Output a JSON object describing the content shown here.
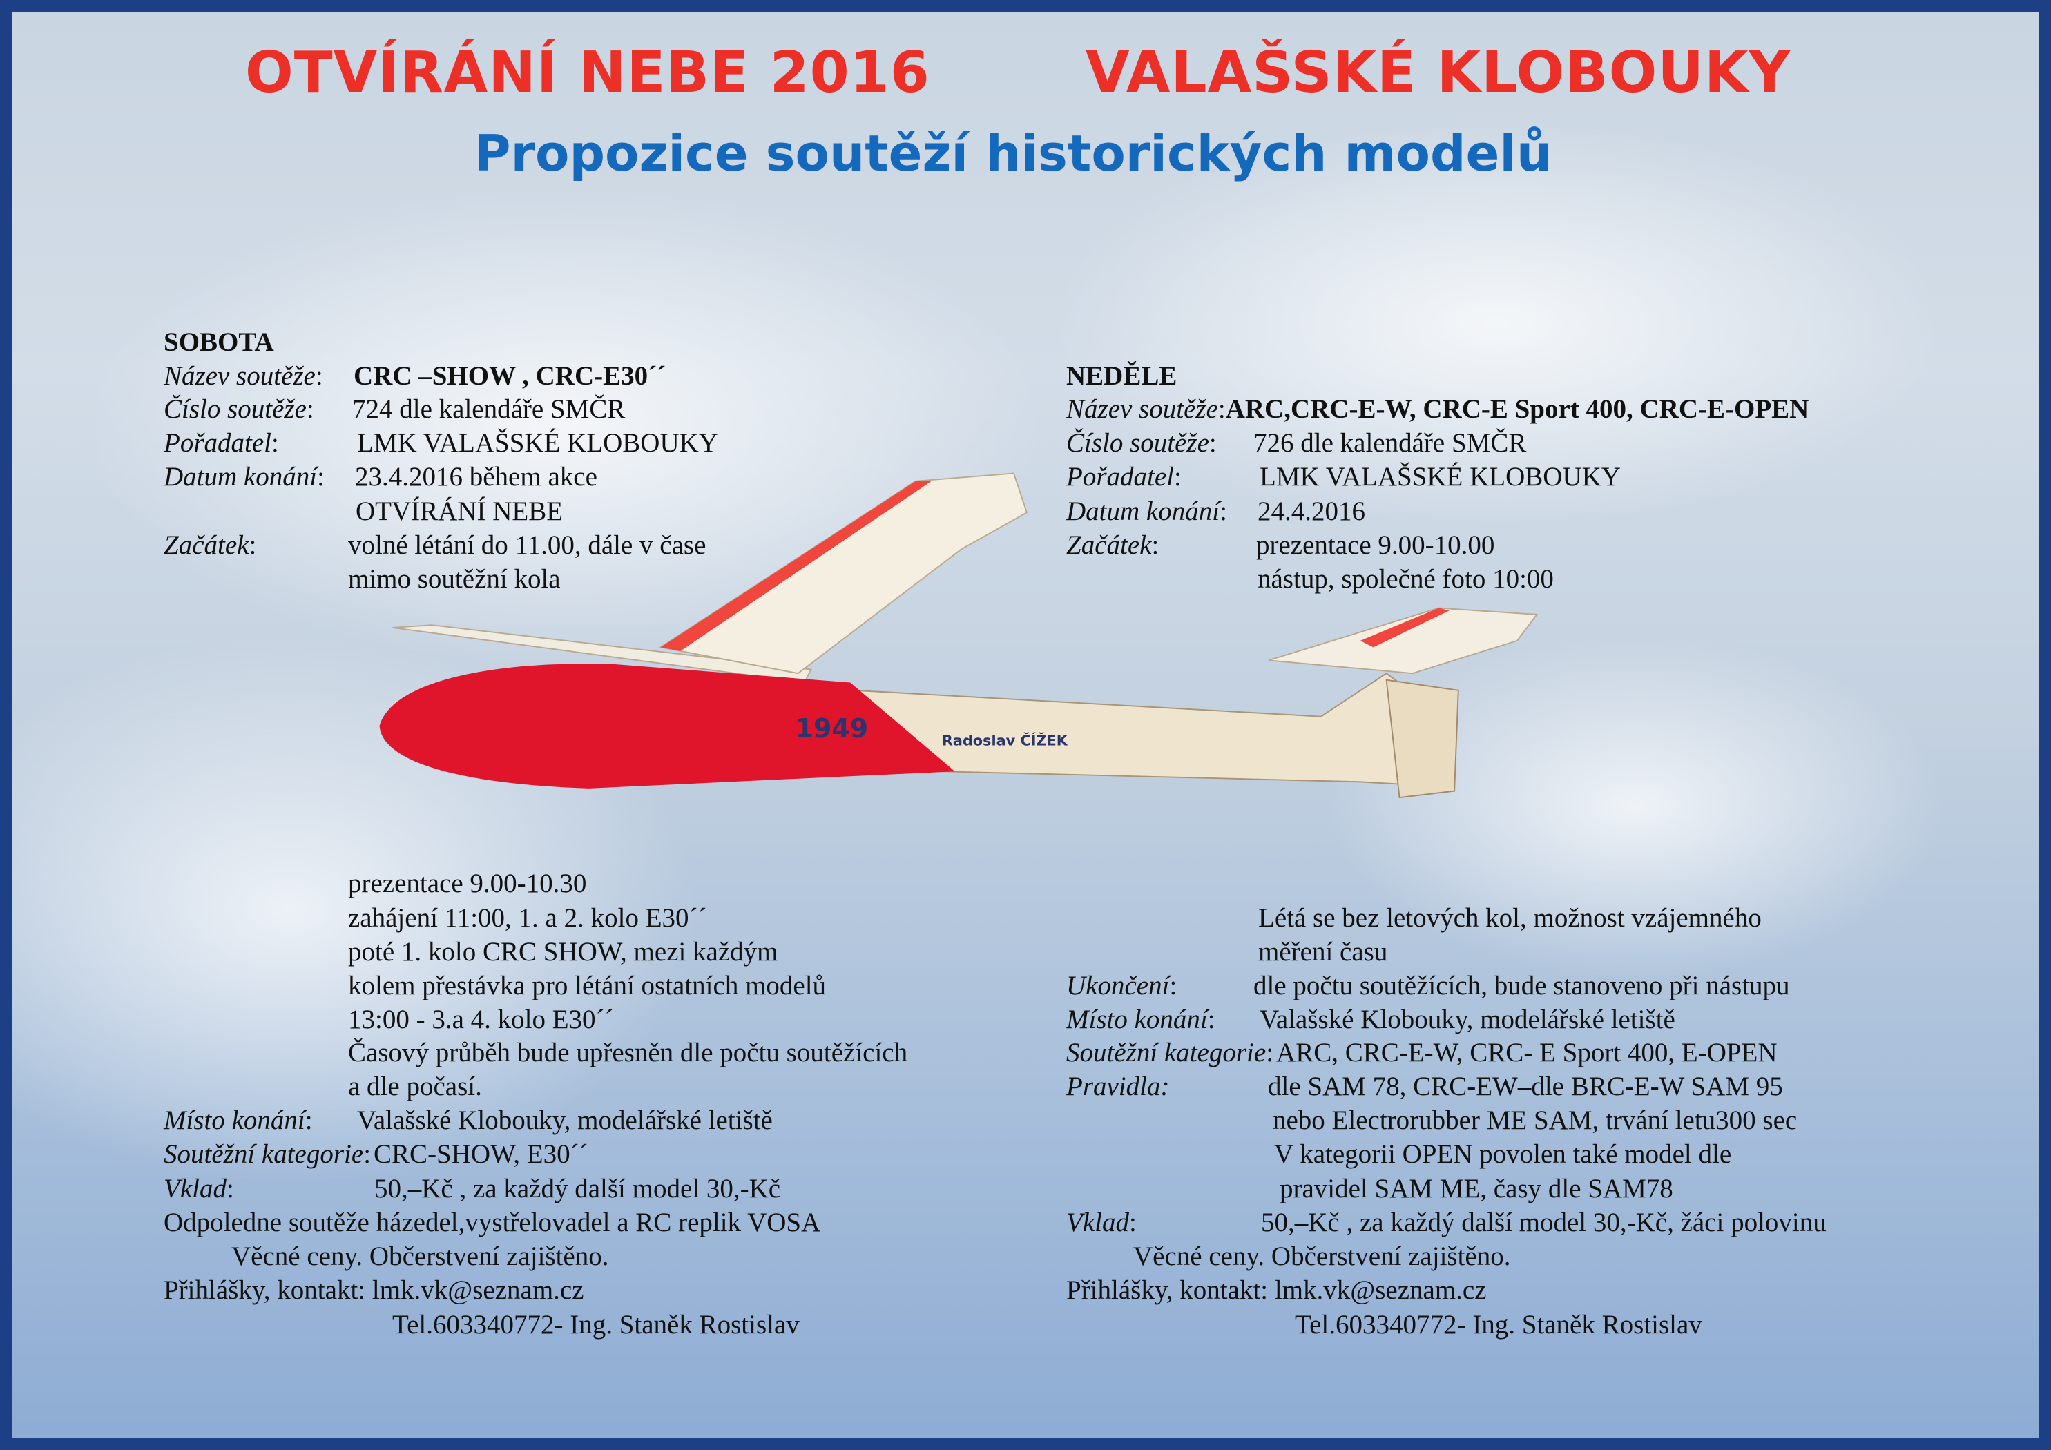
{
  "header": {
    "title_left": "OTVÍRÁNÍ NEBE 2016",
    "title_right": "VALAŠSKÉ KLOBOUKY",
    "subtitle": "Propozice soutěží historických modelů"
  },
  "colors": {
    "title_red": "#ec2f27",
    "subtitle_blue": "#1569bd",
    "frame": "#1c3f86",
    "fuselage_red": "#e0152b"
  },
  "plane_markings": {
    "number": "1949",
    "name": "Radoslav ČÍŽEK"
  },
  "saturday": {
    "heading": "SOBOTA",
    "lines": [
      {
        "label": "Název soutěže",
        "sep": ":",
        "value": "CRC –SHOW , CRC-E30´´",
        "bold": true
      },
      {
        "label": "Číslo soutěže",
        "sep": ":",
        "value": "724 dle kalendáře SMČR"
      },
      {
        "label": "Pořadatel",
        "sep": ":",
        "value": "LMK VALAŠSKÉ KLOBOUKY"
      },
      {
        "label": "Datum konání",
        "sep": ":",
        "value": "23.4.2016  během akce"
      },
      {
        "label": "",
        "sep": "",
        "value": "OTVÍRÁNÍ NEBE"
      },
      {
        "label": "Začátek",
        "sep": ":",
        "value": "volné létání do 11.00, dále v čase"
      },
      {
        "label": "",
        "sep": "",
        "value": "mimo soutěžní kola"
      },
      {
        "label": "",
        "sep": "",
        "value": "prezentace 9.00-10.30"
      },
      {
        "label": "",
        "sep": "",
        "value": "zahájení   11:00, 1.  a 2. kolo E30´´"
      },
      {
        "label": "",
        "sep": "",
        "value": "poté 1. kolo CRC SHOW, mezi každým"
      },
      {
        "label": "",
        "sep": "",
        "value": "kolem přestávka pro létání ostatních modelů"
      },
      {
        "label": "",
        "sep": "",
        "value": "13:00 - 3.a 4. kolo  E30´´"
      },
      {
        "label": "",
        "sep": "",
        "value": "Časový průběh bude upřesněn dle počtu soutěžících"
      },
      {
        "label": "",
        "sep": "",
        "value": "a dle počasí."
      },
      {
        "label": "Místo konání",
        "sep": ":",
        "value": "Valašské Klobouky, modelářské letiště"
      },
      {
        "label": "Soutěžní kategorie",
        "sep": ":",
        "value": "CRC-SHOW,  E30´´"
      },
      {
        "label": "Vklad",
        "sep": ":",
        "value": "50,–Kč , za každý další model 30,-Kč"
      },
      {
        "label": "",
        "sep": "",
        "value": "Odpoledne soutěže házedel,vystřelovadel a RC replik VOSA"
      },
      {
        "label": "",
        "sep": "",
        "value": "Věcné ceny. Občerstvení zajištěno."
      },
      {
        "label": "",
        "sep": "",
        "value": "Přihlášky, kontakt:  lmk.vk@seznam.cz"
      },
      {
        "label": "",
        "sep": "",
        "value": "Tel.603340772- Ing. Staněk Rostislav"
      }
    ]
  },
  "sunday": {
    "heading": "NEDĚLE",
    "lines": [
      {
        "label": "Název soutěže",
        "sep": ":",
        "value": "ARC,CRC-E-W, CRC-E Sport 400, CRC-E-OPEN",
        "bold": true
      },
      {
        "label": "Číslo soutěže",
        "sep": ":",
        "value": "726 dle kalendáře SMČR"
      },
      {
        "label": "Pořadatel",
        "sep": ":",
        "value": "LMK VALAŠSKÉ KLOBOUKY"
      },
      {
        "label": "Datum konání",
        "sep": ":",
        "value": "24.4.2016"
      },
      {
        "label": "Začátek",
        "sep": ":",
        "value": "prezentace 9.00-10.00"
      },
      {
        "label": "",
        "sep": "",
        "value": "nástup, společné foto 10:00"
      },
      {
        "label": "",
        "sep": "",
        "value": "Létá se bez letových kol, možnost vzájemného"
      },
      {
        "label": "",
        "sep": "",
        "value": "měření času"
      },
      {
        "label": "Ukončení",
        "sep": ":",
        "value": "dle počtu soutěžících, bude stanoveno při nástupu"
      },
      {
        "label": "Místo konání",
        "sep": ":",
        "value": "Valašské Klobouky, modelářské letiště"
      },
      {
        "label": "Soutěžní kategorie",
        "sep": ":",
        "value": "ARC, CRC-E-W, CRC- E Sport 400, E-OPEN"
      },
      {
        "label": "Pravidla:",
        "sep": "",
        "value": "dle SAM 78, CRC-EW–dle BRC-E-W SAM 95"
      },
      {
        "label": "",
        "sep": "",
        "value": "nebo  Electrorubber ME SAM, trvání letu300 sec"
      },
      {
        "label": "",
        "sep": "",
        "value": "V kategorii OPEN povolen také model dle"
      },
      {
        "label": "",
        "sep": "",
        "value": "pravidel  SAM ME, časy dle SAM78"
      },
      {
        "label": "Vklad",
        "sep": ":",
        "value": "50,–Kč , za každý další model 30,-Kč, žáci polovinu"
      },
      {
        "label": "",
        "sep": "",
        "value": "Věcné ceny. Občerstvení zajištěno."
      },
      {
        "label": "",
        "sep": "",
        "value": "Přihlášky, kontakt:  lmk.vk@seznam.cz"
      },
      {
        "label": "",
        "sep": "",
        "value": "Tel.603340772- Ing. Staněk Rostislav"
      }
    ]
  }
}
